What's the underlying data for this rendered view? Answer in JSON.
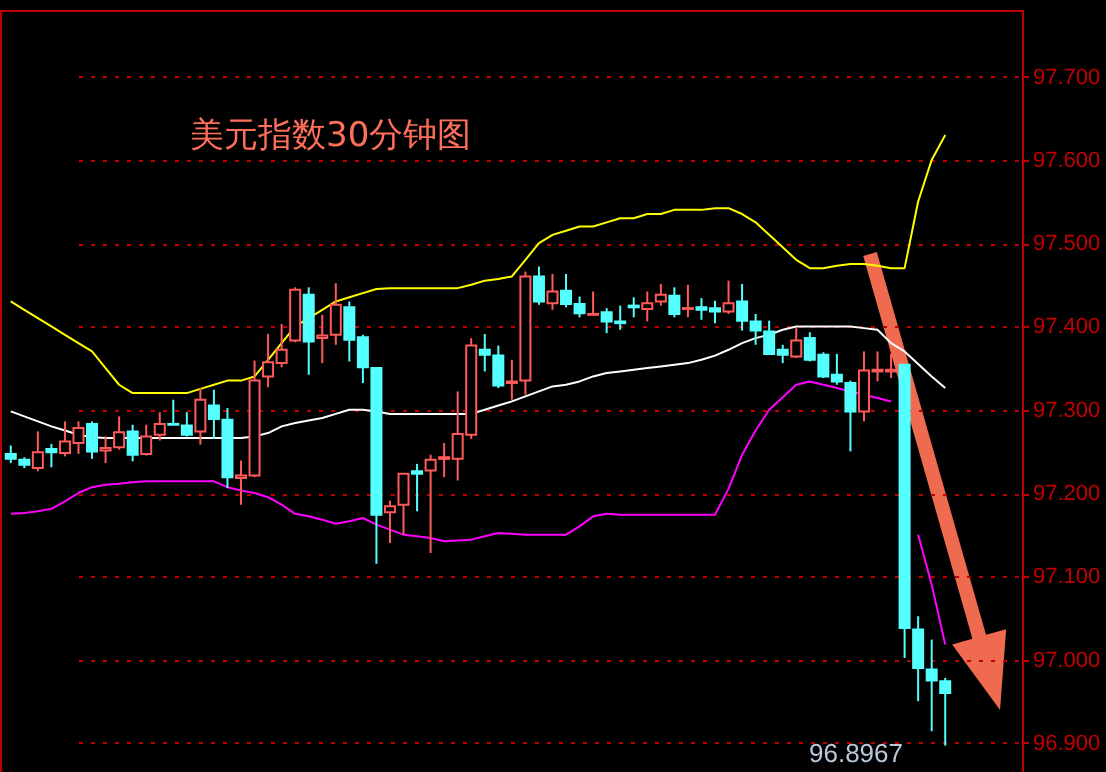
{
  "chart_data": {
    "type": "candlestick",
    "title": "美元指数30分钟图",
    "categories": [
      null,
      null,
      null,
      null,
      null,
      null,
      null,
      null,
      null,
      null,
      null,
      null,
      null,
      null,
      null,
      null,
      null,
      null,
      null,
      null,
      null,
      null,
      null,
      null,
      null,
      null,
      null,
      null,
      null,
      null,
      null,
      null,
      null,
      null,
      null,
      null,
      null,
      null,
      null,
      null,
      null,
      null,
      null,
      null,
      null,
      null,
      null,
      null,
      null,
      null,
      null,
      null,
      null,
      null,
      null,
      null,
      null,
      null,
      null,
      null,
      null,
      null,
      null,
      null,
      null,
      null,
      null,
      null,
      null,
      null
    ],
    "ohlc": [
      [
        97.247,
        97.257,
        97.236,
        97.241
      ],
      [
        97.24,
        97.243,
        97.23,
        97.234
      ],
      [
        97.23,
        97.274,
        97.226,
        97.249
      ],
      [
        97.253,
        97.259,
        97.231,
        97.249
      ],
      [
        97.248,
        97.286,
        97.244,
        97.262
      ],
      [
        97.26,
        97.286,
        97.247,
        97.278
      ],
      [
        97.283,
        97.286,
        97.241,
        97.25
      ],
      [
        97.251,
        97.268,
        97.236,
        97.254
      ],
      [
        97.255,
        97.292,
        97.252,
        97.273
      ],
      [
        97.274,
        97.282,
        97.238,
        97.246
      ],
      [
        97.247,
        97.282,
        97.245,
        97.268
      ],
      [
        97.27,
        97.297,
        97.263,
        97.283
      ],
      [
        97.283,
        97.312,
        97.282,
        97.282
      ],
      [
        97.281,
        97.297,
        97.268,
        97.27
      ],
      [
        97.274,
        97.326,
        97.258,
        97.312
      ],
      [
        97.305,
        97.324,
        97.265,
        97.289
      ],
      [
        97.288,
        97.302,
        97.206,
        97.219
      ],
      [
        97.218,
        97.239,
        97.186,
        97.221
      ],
      [
        97.221,
        97.359,
        97.219,
        97.335
      ],
      [
        97.34,
        97.391,
        97.327,
        97.357
      ],
      [
        97.356,
        97.403,
        97.351,
        97.372
      ],
      [
        97.383,
        97.447,
        97.381,
        97.444
      ],
      [
        97.438,
        97.447,
        97.342,
        97.382
      ],
      [
        97.386,
        97.414,
        97.356,
        97.389
      ],
      [
        97.39,
        97.452,
        97.378,
        97.426
      ],
      [
        97.423,
        97.43,
        97.358,
        97.384
      ],
      [
        97.387,
        97.39,
        97.332,
        97.351
      ],
      [
        97.35,
        97.35,
        97.115,
        97.174
      ],
      [
        97.177,
        97.191,
        97.14,
        97.184
      ],
      [
        97.186,
        97.223,
        97.15,
        97.223
      ],
      [
        97.226,
        97.235,
        97.178,
        97.223
      ],
      [
        97.227,
        97.246,
        97.128,
        97.24
      ],
      [
        97.241,
        97.26,
        97.219,
        97.243
      ],
      [
        97.241,
        97.322,
        97.215,
        97.271
      ],
      [
        97.27,
        97.386,
        97.265,
        97.377
      ],
      [
        97.372,
        97.391,
        97.346,
        97.366
      ],
      [
        97.365,
        97.377,
        97.326,
        97.329
      ],
      [
        97.332,
        97.36,
        97.312,
        97.334
      ],
      [
        97.335,
        97.466,
        97.318,
        97.46
      ],
      [
        97.46,
        97.472,
        97.426,
        97.43
      ],
      [
        97.428,
        97.463,
        97.42,
        97.442
      ],
      [
        97.443,
        97.463,
        97.423,
        97.427
      ],
      [
        97.427,
        97.436,
        97.411,
        97.416
      ],
      [
        97.414,
        97.442,
        97.414,
        97.415
      ],
      [
        97.417,
        97.422,
        97.392,
        97.406
      ],
      [
        97.406,
        97.425,
        97.396,
        97.404
      ],
      [
        97.425,
        97.435,
        97.411,
        97.423
      ],
      [
        97.421,
        97.442,
        97.406,
        97.428
      ],
      [
        97.43,
        97.451,
        97.425,
        97.438
      ],
      [
        97.437,
        97.447,
        97.411,
        97.415
      ],
      [
        97.421,
        97.45,
        97.411,
        97.422
      ],
      [
        97.423,
        97.434,
        97.408,
        97.42
      ],
      [
        97.422,
        97.431,
        97.404,
        97.418
      ],
      [
        97.418,
        97.455,
        97.415,
        97.428
      ],
      [
        97.43,
        97.451,
        97.395,
        97.407
      ],
      [
        97.406,
        97.415,
        97.378,
        97.395
      ],
      [
        97.394,
        97.407,
        97.366,
        97.367
      ],
      [
        97.372,
        97.378,
        97.356,
        97.366
      ],
      [
        97.364,
        97.398,
        97.362,
        97.383
      ],
      [
        97.386,
        97.393,
        97.358,
        97.36
      ],
      [
        97.366,
        97.369,
        97.338,
        97.34
      ],
      [
        97.342,
        97.367,
        97.33,
        97.334
      ],
      [
        97.332,
        97.335,
        97.25,
        97.298
      ],
      [
        97.298,
        97.37,
        97.286,
        97.347
      ],
      [
        97.346,
        97.37,
        97.334,
        97.348
      ],
      [
        97.346,
        97.367,
        97.338,
        97.348
      ],
      [
        97.354,
        97.354,
        97.002,
        97.038
      ],
      [
        97.036,
        97.052,
        96.95,
        96.99
      ],
      [
        96.988,
        97.024,
        96.914,
        96.975
      ],
      [
        96.974,
        96.978,
        96.8967,
        96.96
      ]
    ],
    "colors": [
      "#54ffff",
      "#54ffff",
      "#ff5a5a",
      "#54ffff",
      "#ff5a5a",
      "#ff5a5a",
      "#54ffff",
      "#ff5a5a",
      "#ff5a5a",
      "#54ffff",
      "#ff5a5a",
      "#ff5a5a",
      "#54ffff",
      "#54ffff",
      "#ff5a5a",
      "#54ffff",
      "#54ffff",
      "#ff5a5a",
      "#ff5a5a",
      "#ff5a5a",
      "#ff5a5a",
      "#ff5a5a",
      "#54ffff",
      "#ff5a5a",
      "#ff5a5a",
      "#54ffff",
      "#54ffff",
      "#54ffff",
      "#ff5a5a",
      "#ff5a5a",
      "#54ffff",
      "#ff5a5a",
      "#ff5a5a",
      "#ff5a5a",
      "#ff5a5a",
      "#54ffff",
      "#54ffff",
      "#ff5a5a",
      "#ff5a5a",
      "#54ffff",
      "#ff5a5a",
      "#54ffff",
      "#54ffff",
      "#ff5a5a",
      "#54ffff",
      "#54ffff",
      "#54ffff",
      "#ff5a5a",
      "#ff5a5a",
      "#54ffff",
      "#ff5a5a",
      "#54ffff",
      "#54ffff",
      "#ff5a5a",
      "#54ffff",
      "#54ffff",
      "#54ffff",
      "#54ffff",
      "#ff5a5a",
      "#54ffff",
      "#54ffff",
      "#54ffff",
      "#54ffff",
      "#ff5a5a",
      "#ff5a5a",
      "#ff5a5a",
      "#54ffff",
      "#54ffff",
      "#54ffff",
      "#54ffff"
    ],
    "series": [
      {
        "type": "line",
        "color": "#ffff00",
        "values": [
          97.43,
          97.42,
          97.41,
          97.4,
          97.39,
          97.38,
          97.37,
          97.35,
          97.33,
          97.32,
          97.32,
          97.32,
          97.32,
          97.32,
          97.325,
          97.33,
          97.335,
          97.335,
          97.34,
          97.36,
          97.38,
          97.4,
          97.41,
          97.42,
          97.43,
          97.435,
          97.44,
          97.445,
          97.446,
          97.446,
          97.446,
          97.446,
          97.446,
          97.446,
          97.45,
          97.455,
          97.457,
          97.46,
          97.48,
          97.5,
          97.51,
          97.515,
          97.52,
          97.52,
          97.525,
          97.53,
          97.53,
          97.535,
          97.535,
          97.54,
          97.54,
          97.54,
          97.542,
          97.542,
          97.535,
          97.525,
          97.51,
          97.495,
          97.48,
          97.47,
          97.47,
          97.473,
          97.475,
          97.475,
          97.473,
          97.47,
          97.47,
          97.55,
          97.6,
          97.63
        ]
      },
      {
        "type": "line",
        "color": "#ffffff",
        "values": [
          97.298,
          97.292,
          97.286,
          97.28,
          97.275,
          97.27,
          97.267,
          97.266,
          97.266,
          97.266,
          97.266,
          97.266,
          97.266,
          97.266,
          97.266,
          97.266,
          97.266,
          97.266,
          97.268,
          97.272,
          97.28,
          97.284,
          97.287,
          97.29,
          97.295,
          97.3,
          97.3,
          97.298,
          97.295,
          97.295,
          97.295,
          97.295,
          97.295,
          97.295,
          97.295,
          97.3,
          97.305,
          97.31,
          97.316,
          97.322,
          97.328,
          97.33,
          97.334,
          97.34,
          97.344,
          97.346,
          97.348,
          97.35,
          97.352,
          97.354,
          97.356,
          97.36,
          97.365,
          97.372,
          97.38,
          97.386,
          97.39,
          97.396,
          97.4,
          97.4,
          97.4,
          97.4,
          97.4,
          97.398,
          97.396,
          97.38,
          97.37,
          97.355,
          97.34,
          97.326
        ]
      },
      {
        "type": "line",
        "color": "#ff00ff",
        "values": [
          97.175,
          97.176,
          97.178,
          97.181,
          97.19,
          97.2,
          97.207,
          97.21,
          97.211,
          97.213,
          97.214,
          97.214,
          97.214,
          97.214,
          97.214,
          97.214,
          97.207,
          97.203,
          97.2,
          97.195,
          97.186,
          97.175,
          97.172,
          97.168,
          97.163,
          97.166,
          97.17,
          97.162,
          97.156,
          97.15,
          97.148,
          97.146,
          97.142,
          97.143,
          97.144,
          97.148,
          97.152,
          97.151,
          97.15,
          97.15,
          97.15,
          97.15,
          97.16,
          97.172,
          97.175,
          97.174,
          97.174,
          97.174,
          97.174,
          97.174,
          97.174,
          97.174,
          97.174,
          97.205,
          97.246,
          97.275,
          97.3,
          97.315,
          97.33,
          97.334,
          97.33,
          97.326,
          97.322,
          97.318,
          97.314,
          97.31,
          null,
          97.15,
          97.09,
          97.018
        ]
      }
    ],
    "ylim": [
      96.865,
      97.78
    ],
    "yticks": [
      {
        "value": 96.9,
        "label": "96.900"
      },
      {
        "value": 97.0,
        "label": "97.000"
      },
      {
        "value": 97.1,
        "label": "97.100"
      },
      {
        "value": 97.2,
        "label": "97.200"
      },
      {
        "value": 97.3,
        "label": "97.300"
      },
      {
        "value": 97.4,
        "label": "97.400"
      },
      {
        "value": 97.5,
        "label": "97.500"
      },
      {
        "value": 97.6,
        "label": "97.600"
      },
      {
        "value": 97.7,
        "label": "97.700"
      }
    ],
    "grid": "y",
    "tick_labels": "y",
    "annotations": [
      "96.8967"
    ]
  }
}
